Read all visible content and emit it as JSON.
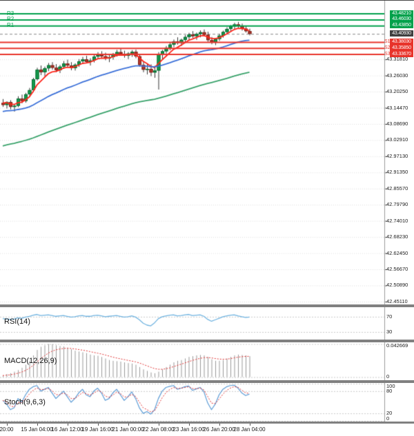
{
  "colors": {
    "up": "#129a4b",
    "up_border": "#0a6b33",
    "down": "#b6372a",
    "down_border": "#7c241b",
    "wick": "#333333",
    "resistance": "#00a14b",
    "support": "#e8332a",
    "current_badge": "#3f3f3f",
    "grid": "#dedede",
    "guide": "#c8c8c8",
    "axis_line": "#999999",
    "separator": "#808080",
    "current_line": "#888888"
  },
  "chart_data": {
    "type": "candlestick",
    "price_range": [
      42.441,
      43.528
    ],
    "timeframe_labels": [
      "20:00",
      "15 Jan 04:00",
      "16 Jan 12:00",
      "19 Jan 16:00",
      "21 Jan 00:00",
      "22 Jan 08:00",
      "23 Jan 16:00",
      "26 Jan 20:00",
      "28 Jan 04:00"
    ],
    "label_start_index": 1,
    "label_every": 8,
    "price_axis_ticks": [
      {
        "value": 43.3181,
        "label": "43.31810"
      },
      {
        "value": 43.2603,
        "label": "43.26030"
      },
      {
        "value": 43.2025,
        "label": "43.20250"
      },
      {
        "value": 43.1447,
        "label": "43.14470"
      },
      {
        "value": 43.0869,
        "label": "43.08690"
      },
      {
        "value": 43.0291,
        "label": "43.02910"
      },
      {
        "value": 42.9713,
        "label": "42.97130"
      },
      {
        "value": 42.9135,
        "label": "42.91350"
      },
      {
        "value": 42.8557,
        "label": "42.85570"
      },
      {
        "value": 42.7979,
        "label": "42.79790"
      },
      {
        "value": 42.7401,
        "label": "42.74010"
      },
      {
        "value": 42.6823,
        "label": "42.68230"
      },
      {
        "value": 42.6245,
        "label": "42.62450"
      },
      {
        "value": 42.5667,
        "label": "42.56670"
      },
      {
        "value": 42.5089,
        "label": "42.50890"
      },
      {
        "value": 42.4511,
        "label": "42.45110"
      }
    ],
    "levels": {
      "resistance": [
        {
          "name": "R3",
          "value": 43.4821,
          "label": "43.48210"
        },
        {
          "name": "R2",
          "value": 43.4603,
          "label": "43.46030"
        },
        {
          "name": "R1",
          "value": 43.4385,
          "label": "43.43850"
        }
      ],
      "support": [
        {
          "name": "S1",
          "value": 43.3803,
          "label": "43.38030"
        },
        {
          "name": "S2",
          "value": 43.3585,
          "label": "43.35850"
        },
        {
          "name": "S3",
          "value": 43.3367,
          "label": "43.33670"
        }
      ],
      "current_price": {
        "value": 43.4093,
        "label": "43.40930"
      }
    },
    "moving_averages": [
      {
        "name": "ma-fast",
        "color": "#ff2419",
        "alpha": 0.3,
        "seed": 43.165
      },
      {
        "name": "ma-mid",
        "color": "#3a6fd8",
        "alpha": 0.065,
        "seed": 43.13
      },
      {
        "name": "ma-slow",
        "color": "#37a169",
        "alpha": 0.022,
        "seed": 43.005
      }
    ],
    "candles": [
      [
        43.162,
        43.176,
        43.148,
        43.155
      ],
      [
        43.155,
        43.168,
        43.142,
        43.165
      ],
      [
        43.165,
        43.172,
        43.139,
        43.148
      ],
      [
        43.148,
        43.158,
        43.131,
        43.152
      ],
      [
        43.152,
        43.186,
        43.147,
        43.178
      ],
      [
        43.178,
        43.192,
        43.161,
        43.169
      ],
      [
        43.169,
        43.198,
        43.163,
        43.193
      ],
      [
        43.193,
        43.216,
        43.183,
        43.208
      ],
      [
        43.208,
        43.252,
        43.201,
        43.247
      ],
      [
        43.247,
        43.288,
        43.242,
        43.281
      ],
      [
        43.281,
        43.296,
        43.262,
        43.272
      ],
      [
        43.272,
        43.292,
        43.258,
        43.286
      ],
      [
        43.286,
        43.305,
        43.276,
        43.297
      ],
      [
        43.297,
        43.308,
        43.281,
        43.288
      ],
      [
        43.288,
        43.301,
        43.272,
        43.279
      ],
      [
        43.279,
        43.298,
        43.269,
        43.292
      ],
      [
        43.292,
        43.312,
        43.284,
        43.303
      ],
      [
        43.303,
        43.317,
        43.289,
        43.296
      ],
      [
        43.296,
        43.308,
        43.279,
        43.287
      ],
      [
        43.287,
        43.304,
        43.278,
        43.299
      ],
      [
        43.299,
        43.319,
        43.291,
        43.311
      ],
      [
        43.311,
        43.327,
        43.301,
        43.318
      ],
      [
        43.318,
        43.331,
        43.305,
        43.309
      ],
      [
        43.309,
        43.322,
        43.296,
        43.314
      ],
      [
        43.314,
        43.336,
        43.307,
        43.328
      ],
      [
        43.328,
        43.344,
        43.319,
        43.334
      ],
      [
        43.334,
        43.347,
        43.322,
        43.329
      ],
      [
        43.329,
        43.342,
        43.315,
        43.321
      ],
      [
        43.321,
        43.334,
        43.308,
        43.326
      ],
      [
        43.326,
        43.341,
        43.317,
        43.336
      ],
      [
        43.336,
        43.352,
        43.328,
        43.344
      ],
      [
        43.344,
        43.356,
        43.331,
        43.338
      ],
      [
        43.338,
        43.349,
        43.324,
        43.331
      ],
      [
        43.331,
        43.344,
        43.319,
        43.339
      ],
      [
        43.339,
        43.351,
        43.327,
        43.345
      ],
      [
        43.345,
        43.353,
        43.322,
        43.329
      ],
      [
        43.329,
        43.338,
        43.292,
        43.298
      ],
      [
        43.298,
        43.31,
        43.272,
        43.281
      ],
      [
        43.281,
        43.302,
        43.264,
        43.284
      ],
      [
        43.284,
        43.3,
        43.258,
        43.271
      ],
      [
        43.271,
        43.295,
        43.252,
        43.278
      ],
      [
        43.278,
        43.344,
        43.21,
        43.336
      ],
      [
        43.336,
        43.352,
        43.318,
        43.347
      ],
      [
        43.347,
        43.366,
        43.339,
        43.359
      ],
      [
        43.359,
        43.378,
        43.351,
        43.371
      ],
      [
        43.371,
        43.389,
        43.362,
        43.382
      ],
      [
        43.382,
        43.397,
        43.371,
        43.377
      ],
      [
        43.377,
        43.392,
        43.366,
        43.388
      ],
      [
        43.388,
        43.405,
        43.379,
        43.398
      ],
      [
        43.398,
        43.413,
        43.387,
        43.407
      ],
      [
        43.407,
        43.419,
        43.394,
        43.401
      ],
      [
        43.401,
        43.414,
        43.388,
        43.409
      ],
      [
        43.409,
        43.422,
        43.397,
        43.415
      ],
      [
        43.415,
        43.425,
        43.401,
        43.406
      ],
      [
        43.406,
        43.417,
        43.381,
        43.387
      ],
      [
        43.387,
        43.398,
        43.372,
        43.379
      ],
      [
        43.379,
        43.394,
        43.369,
        43.391
      ],
      [
        43.391,
        43.409,
        43.384,
        43.403
      ],
      [
        43.403,
        43.421,
        43.396,
        43.416
      ],
      [
        43.416,
        43.433,
        43.408,
        43.427
      ],
      [
        43.427,
        43.441,
        43.419,
        43.436
      ],
      [
        43.436,
        43.449,
        43.426,
        43.443
      ],
      [
        43.443,
        43.452,
        43.431,
        43.438
      ],
      [
        43.438,
        43.446,
        43.421,
        43.428
      ],
      [
        43.428,
        43.437,
        43.414,
        43.419
      ],
      [
        43.419,
        43.428,
        43.404,
        43.4093
      ]
    ],
    "indicators": {
      "rsi": {
        "label": "RSI(14)",
        "color": "#6fb3e0",
        "range": [
          10,
          95
        ],
        "guides": [
          {
            "value": 70,
            "label": "70"
          },
          {
            "value": 30,
            "label": "30"
          }
        ],
        "values": [
          65,
          64,
          63,
          64,
          67,
          66,
          69,
          71,
          74,
          76,
          73,
          74,
          75,
          73,
          71,
          72,
          73,
          71,
          69,
          70,
          72,
          73,
          71,
          71,
          73,
          74,
          72,
          70,
          71,
          72,
          73,
          71,
          69,
          70,
          72,
          69,
          62,
          53,
          48,
          46,
          54,
          65,
          70,
          72,
          74,
          75,
          72,
          73,
          75,
          76,
          73,
          74,
          75,
          71,
          63,
          58,
          62,
          66,
          70,
          72,
          74,
          75,
          72,
          70,
          68,
          69
        ]
      },
      "macd": {
        "label": "MACD(12,26,9)",
        "hist_color": "#999999",
        "signal_color": "#e03030",
        "range": [
          -0.004,
          0.0448
        ],
        "signal_alpha": 0.22,
        "signal_seed": 0.002,
        "guides": [
          {
            "value": 0.042669,
            "label": "0.042669"
          },
          {
            "value": 0,
            "label": "0"
          }
        ],
        "values": [
          0.002,
          0.004,
          0.005,
          0.007,
          0.009,
          0.012,
          0.016,
          0.021,
          0.028,
          0.035,
          0.039,
          0.041,
          0.0427,
          0.0425,
          0.041,
          0.04,
          0.0395,
          0.038,
          0.036,
          0.034,
          0.033,
          0.032,
          0.031,
          0.029,
          0.028,
          0.0275,
          0.026,
          0.024,
          0.022,
          0.021,
          0.0205,
          0.02,
          0.019,
          0.018,
          0.0175,
          0.016,
          0.013,
          0.01,
          0.008,
          0.006,
          0.005,
          0.007,
          0.01,
          0.013,
          0.016,
          0.019,
          0.021,
          0.022,
          0.024,
          0.026,
          0.027,
          0.028,
          0.0285,
          0.028,
          0.026,
          0.023,
          0.021,
          0.021,
          0.022,
          0.024,
          0.026,
          0.028,
          0.029,
          0.0285,
          0.028,
          0.027
        ]
      },
      "stoch": {
        "label": "Stoch(9,6,3)",
        "main_color": "#5b9bd5",
        "signal_color": "#e03030",
        "range": [
          -2,
          102
        ],
        "signal_alpha": 0.5,
        "signal_seed": 55,
        "guides": [
          {
            "value": 100,
            "label": "100"
          },
          {
            "value": 80,
            "label": "80"
          },
          {
            "value": 20,
            "label": "20"
          },
          {
            "value": 0,
            "label": "0"
          }
        ],
        "values": [
          55,
          45,
          30,
          35,
          60,
          50,
          70,
          85,
          92,
          95,
          80,
          85,
          90,
          75,
          60,
          70,
          80,
          65,
          50,
          60,
          75,
          85,
          70,
          65,
          80,
          88,
          75,
          55,
          60,
          75,
          85,
          70,
          55,
          65,
          78,
          60,
          35,
          20,
          25,
          18,
          30,
          60,
          80,
          90,
          93,
          95,
          85,
          88,
          92,
          94,
          82,
          86,
          90,
          78,
          48,
          30,
          45,
          70,
          85,
          92,
          95,
          96,
          88,
          75,
          68,
          72
        ]
      }
    }
  }
}
